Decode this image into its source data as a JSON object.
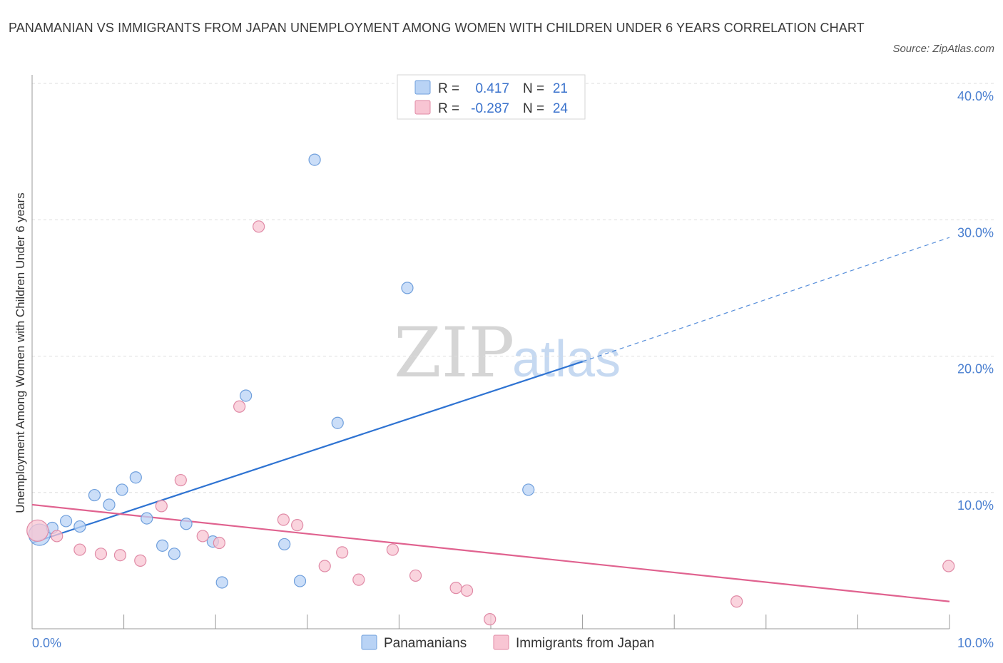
{
  "title": "PANAMANIAN VS IMMIGRANTS FROM JAPAN UNEMPLOYMENT AMONG WOMEN WITH CHILDREN UNDER 6 YEARS CORRELATION CHART",
  "source": "Source: ZipAtlas.com",
  "watermark": {
    "zip": "ZIP",
    "atlas": "atlas"
  },
  "colors": {
    "blue_fill": "#b9d3f5",
    "blue_stroke": "#6f9fdc",
    "blue_line": "#2e73d2",
    "pink_fill": "#f8c5d3",
    "pink_stroke": "#e08aa6",
    "pink_line": "#e0628f",
    "grid": "#dddddd",
    "axis": "#999999"
  },
  "stats": {
    "r_label": "R =",
    "n_label": "N =",
    "blue": {
      "r": "0.417",
      "n": "21"
    },
    "pink": {
      "r": "-0.287",
      "n": "24"
    }
  },
  "chart_data": {
    "type": "scatter",
    "xlabel": "",
    "ylabel": "Unemployment Among Women with Children Under 6 years",
    "xlim": [
      0,
      10
    ],
    "ylim": [
      0,
      40
    ],
    "x_tick_labels": [
      "0.0%",
      "10.0%"
    ],
    "y_ticks": [
      10,
      20,
      30,
      40
    ],
    "y_tick_labels": [
      "10.0%",
      "20.0%",
      "30.0%",
      "40.0%"
    ],
    "legend": [
      "Panamanians",
      "Immigrants from Japan"
    ],
    "series": [
      {
        "name": "Panamanians",
        "color": "blue",
        "r": 0.417,
        "n": 21,
        "trend": {
          "x0": 0,
          "y0": 6.3,
          "x1": 6.0,
          "y1": 19.6,
          "x_dash_end": 10.0,
          "y_dash_end": 28.7
        },
        "points": [
          {
            "x": 0.08,
            "y": 6.9,
            "big": true
          },
          {
            "x": 0.22,
            "y": 7.4
          },
          {
            "x": 0.37,
            "y": 7.9
          },
          {
            "x": 0.52,
            "y": 7.5
          },
          {
            "x": 0.68,
            "y": 9.8
          },
          {
            "x": 0.84,
            "y": 9.1
          },
          {
            "x": 0.98,
            "y": 10.2
          },
          {
            "x": 1.13,
            "y": 11.1
          },
          {
            "x": 1.25,
            "y": 8.1
          },
          {
            "x": 1.42,
            "y": 6.1
          },
          {
            "x": 1.55,
            "y": 5.5
          },
          {
            "x": 1.68,
            "y": 7.7
          },
          {
            "x": 1.97,
            "y": 6.4
          },
          {
            "x": 2.07,
            "y": 3.4
          },
          {
            "x": 2.33,
            "y": 17.1
          },
          {
            "x": 2.75,
            "y": 6.2
          },
          {
            "x": 2.92,
            "y": 3.5
          },
          {
            "x": 3.08,
            "y": 34.4
          },
          {
            "x": 3.33,
            "y": 15.1
          },
          {
            "x": 4.09,
            "y": 25.0
          },
          {
            "x": 5.41,
            "y": 10.2
          }
        ]
      },
      {
        "name": "Immigrants from Japan",
        "color": "pink",
        "r": -0.287,
        "n": 24,
        "trend": {
          "x0": 0,
          "y0": 9.1,
          "x1": 10.0,
          "y1": 2.0
        },
        "points": [
          {
            "x": 0.06,
            "y": 7.2,
            "big": true
          },
          {
            "x": 0.27,
            "y": 6.8
          },
          {
            "x": 0.52,
            "y": 5.8
          },
          {
            "x": 0.75,
            "y": 5.5
          },
          {
            "x": 0.96,
            "y": 5.4
          },
          {
            "x": 1.18,
            "y": 5.0
          },
          {
            "x": 1.41,
            "y": 9.0
          },
          {
            "x": 1.62,
            "y": 10.9
          },
          {
            "x": 1.86,
            "y": 6.8
          },
          {
            "x": 2.04,
            "y": 6.3
          },
          {
            "x": 2.26,
            "y": 16.3
          },
          {
            "x": 2.47,
            "y": 29.5
          },
          {
            "x": 2.74,
            "y": 8.0
          },
          {
            "x": 2.89,
            "y": 7.6
          },
          {
            "x": 3.19,
            "y": 4.6
          },
          {
            "x": 3.38,
            "y": 5.6
          },
          {
            "x": 3.56,
            "y": 3.6
          },
          {
            "x": 3.93,
            "y": 5.8
          },
          {
            "x": 4.18,
            "y": 3.9
          },
          {
            "x": 4.62,
            "y": 3.0
          },
          {
            "x": 4.74,
            "y": 2.8
          },
          {
            "x": 4.99,
            "y": 0.7
          },
          {
            "x": 7.68,
            "y": 2.0
          },
          {
            "x": 9.99,
            "y": 4.6
          }
        ]
      }
    ]
  }
}
